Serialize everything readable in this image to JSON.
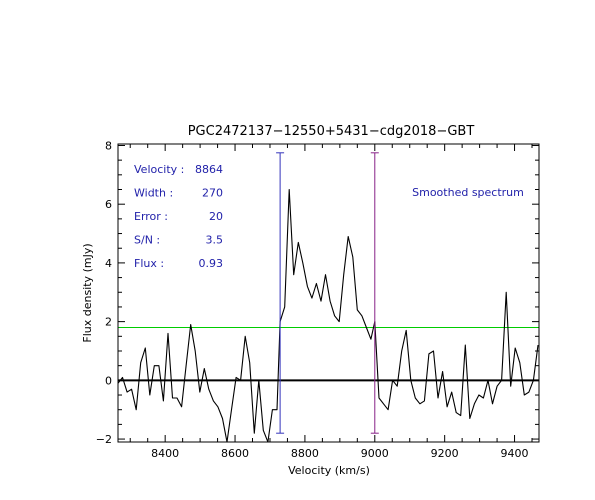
{
  "chart_data": {
    "type": "line",
    "title": "PGC2472137−12550+5431−cdg2018−GBT",
    "xlabel": "Velocity (km/s)",
    "ylabel": "Flux density (mJy)",
    "xlim": [
      8265,
      9470
    ],
    "ylim": [
      -2.1,
      8.05
    ],
    "xticks": [
      8400,
      8600,
      8800,
      9000,
      9200,
      9400
    ],
    "xtick_labels": [
      "8400",
      "8600",
      "8800",
      "9000",
      "9200",
      "9400"
    ],
    "yticks": [
      -2,
      0,
      2,
      4,
      6,
      8
    ],
    "ytick_labels": [
      "−2",
      "0",
      "2",
      "4",
      "6",
      "8"
    ],
    "annotation": "Smoothed spectrum",
    "measurements": [
      {
        "label": "Velocity :",
        "value": "8864"
      },
      {
        "label": "Width :",
        "value": "270"
      },
      {
        "label": "Error :",
        "value": "20"
      },
      {
        "label": "S/N :",
        "value": "3.5"
      },
      {
        "label": "Flux :",
        "value": "0.93"
      }
    ],
    "baseline_level": 0,
    "rms_level": 1.8,
    "window_edges": [
      8729,
      9000
    ],
    "colors": {
      "spectrum": "#000000",
      "baseline": "#000000",
      "rms_line": "#00cc00",
      "window_lines": [
        "#3333bb",
        "#882288"
      ],
      "text": "#2222aa",
      "frame": "#000000"
    },
    "series": [
      {
        "x": [
          8265,
          8278,
          8291,
          8304,
          8317,
          8330,
          8343,
          8356,
          8369,
          8382,
          8395,
          8408,
          8421,
          8434,
          8447,
          8460,
          8473,
          8486,
          8499,
          8512,
          8525,
          8538,
          8551,
          8564,
          8577,
          8590,
          8603,
          8616,
          8629,
          8642,
          8655,
          8668,
          8681,
          8694,
          8707,
          8720,
          8729,
          8742,
          8755,
          8768,
          8781,
          8794,
          8807,
          8820,
          8833,
          8846,
          8859,
          8872,
          8885,
          8898,
          8911,
          8924,
          8937,
          8950,
          8963,
          8976,
          8989,
          9000,
          9012,
          9025,
          9038,
          9051,
          9064,
          9077,
          9090,
          9103,
          9116,
          9129,
          9142,
          9155,
          9168,
          9181,
          9194,
          9207,
          9220,
          9233,
          9246,
          9259,
          9272,
          9285,
          9298,
          9311,
          9324,
          9337,
          9350,
          9363,
          9376,
          9389,
          9402,
          9415,
          9428,
          9441,
          9454,
          9467
        ],
        "y": [
          -0.1,
          0.1,
          -0.4,
          -0.3,
          -1.0,
          0.6,
          1.1,
          -0.5,
          0.5,
          0.5,
          -0.7,
          1.6,
          -0.6,
          -0.6,
          -0.9,
          0.5,
          1.9,
          1.0,
          -0.4,
          0.4,
          -0.3,
          -0.7,
          -0.9,
          -1.3,
          -2.1,
          -1.0,
          0.1,
          0.0,
          1.5,
          0.6,
          -1.8,
          0.0,
          -1.7,
          -2.1,
          -1.0,
          -1.0,
          2.0,
          2.5,
          6.5,
          3.6,
          4.7,
          4.0,
          3.2,
          2.8,
          3.3,
          2.7,
          3.6,
          2.7,
          2.2,
          2.0,
          3.6,
          4.9,
          4.2,
          2.4,
          2.2,
          1.8,
          1.4,
          2.0,
          -0.6,
          -0.8,
          -1.0,
          0.0,
          -0.2,
          1.0,
          1.7,
          0.0,
          -0.6,
          -0.8,
          -0.7,
          0.9,
          1.0,
          -0.6,
          0.3,
          -0.9,
          -0.4,
          -1.1,
          -1.2,
          1.2,
          -1.3,
          -0.8,
          -0.5,
          -0.6,
          0.0,
          -0.8,
          -0.2,
          0.0,
          3.0,
          -0.2,
          1.1,
          0.6,
          -0.5,
          -0.4,
          0.0,
          1.2
        ]
      }
    ]
  }
}
